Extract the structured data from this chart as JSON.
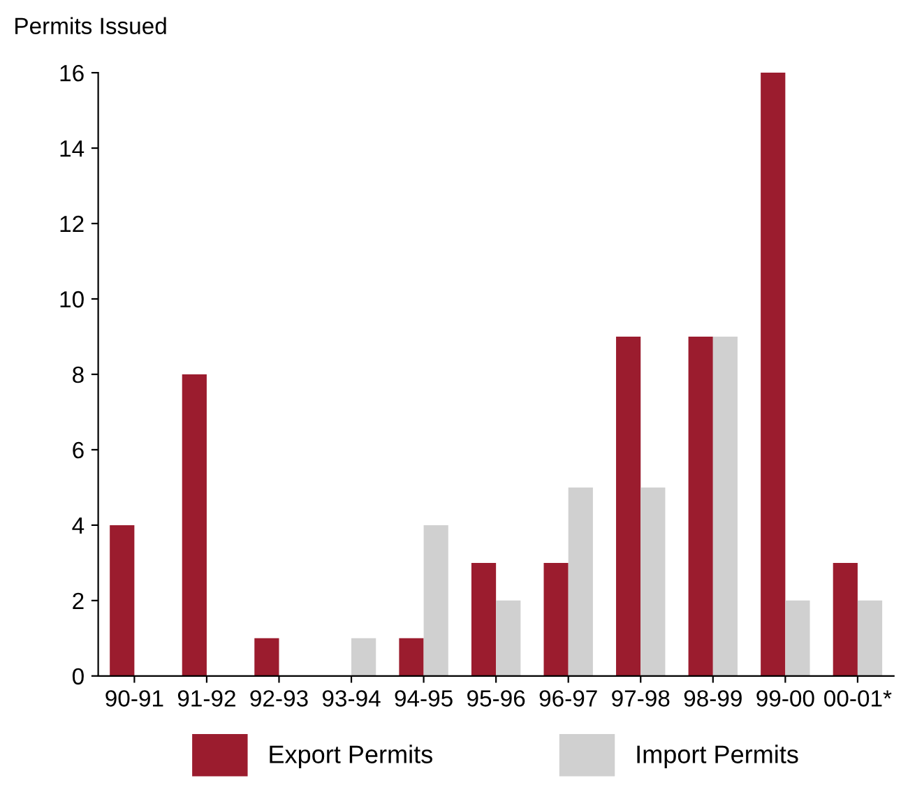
{
  "chart_data": {
    "type": "bar",
    "ylabel": "Permits Issued",
    "categories": [
      "90-91",
      "91-92",
      "92-93",
      "93-94",
      "94-95",
      "95-96",
      "96-97",
      "97-98",
      "98-99",
      "99-00",
      "00-01*"
    ],
    "series": [
      {
        "name": "Export Permits",
        "color": "#9b1c2e",
        "values": [
          4,
          8,
          1,
          0,
          1,
          3,
          3,
          9,
          9,
          16,
          3
        ]
      },
      {
        "name": "Import Permits",
        "color": "#d0d0d0",
        "values": [
          0,
          0,
          0,
          1,
          4,
          2,
          5,
          5,
          9,
          2,
          2
        ]
      }
    ],
    "ylim": [
      0,
      16
    ],
    "yticks": [
      0,
      2,
      4,
      6,
      8,
      10,
      12,
      14,
      16
    ],
    "grid": false,
    "legend": "bottom"
  }
}
